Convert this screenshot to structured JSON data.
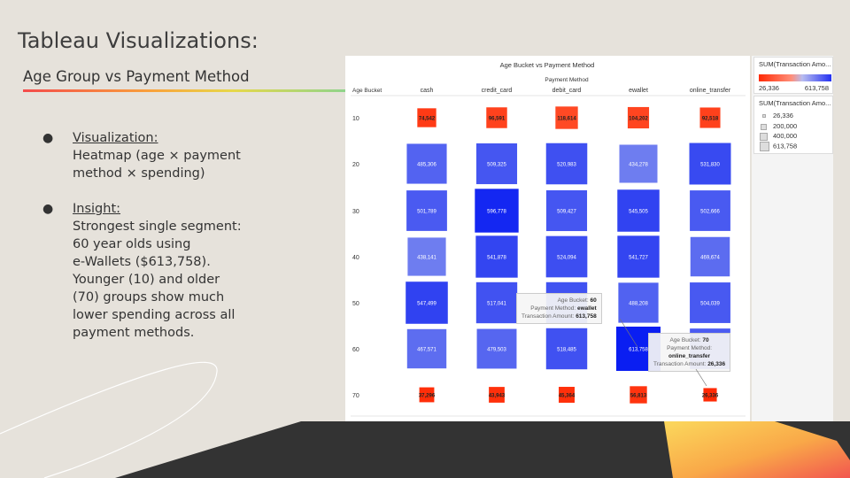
{
  "slide": {
    "title": "Tableau Visualizations:",
    "subtitle": "Age Group vs Payment Method",
    "bullets": [
      {
        "head": "Visualization:",
        "body": "Heatmap (age × payment\nmethod × spending)"
      },
      {
        "head": "Insight:",
        "body": "Strongest single segment:\n60 year olds using\ne-Wallets ($613,758).\nYounger (10) and older\n(70) groups show much\nlower spending across all\npayment methods."
      }
    ],
    "bullet_glyph": "●"
  },
  "colors": {
    "low": "#ff2a05",
    "high": "#0a1ef2",
    "mid_blue": "#5b6ef0"
  },
  "chart_data": {
    "type": "heatmap",
    "title": "Age Bucket vs Payment Method",
    "column_header": "Payment Method",
    "row_header": "Age Bucket",
    "columns": [
      "cash",
      "credit_card",
      "debit_card",
      "ewallet",
      "online_transfer"
    ],
    "rows": [
      "10",
      "20",
      "30",
      "40",
      "50",
      "60",
      "70"
    ],
    "values": [
      [
        74542,
        96591,
        118614,
        104202,
        92518
      ],
      [
        485306,
        509325,
        520983,
        434278,
        531830
      ],
      [
        501789,
        596778,
        509427,
        545505,
        502666
      ],
      [
        438141,
        541878,
        524094,
        541727,
        469674
      ],
      [
        547499,
        517041,
        518000,
        488208,
        504039
      ],
      [
        467571,
        479503,
        518485,
        613758,
        500000
      ],
      [
        37296,
        43943,
        45364,
        56813,
        26336
      ]
    ],
    "labels": [
      [
        "74,542",
        "96,591",
        "118,614",
        "104,202",
        "92,518"
      ],
      [
        "485,306",
        "509,325",
        "520,983",
        "434,278",
        "531,830"
      ],
      [
        "501,789",
        "596,778",
        "509,427",
        "545,505",
        "502,666"
      ],
      [
        "438,141",
        "541,878",
        "524,094",
        "541,727",
        "469,674"
      ],
      [
        "547,499",
        "517,041",
        "",
        "488,208",
        "504,039"
      ],
      [
        "467,571",
        "479,503",
        "518,485",
        "613,758",
        ""
      ],
      [
        "37,296",
        "43,943",
        "45,364",
        "56,813",
        "26,336"
      ]
    ],
    "color_legend": {
      "title": "SUM(Transaction Amo...",
      "min_label": "26,336",
      "max_label": "613,758"
    },
    "size_legend": {
      "title": "SUM(Transaction Amo...",
      "items": [
        "26,336",
        "200,000",
        "400,000",
        "613,758"
      ]
    },
    "tooltips": [
      {
        "age_label": "Age Bucket:",
        "age": "60",
        "method_label": "Payment Method:",
        "method": "ewallet",
        "amount_label": "Transaction Amount:",
        "amount": "613,758"
      },
      {
        "age_label": "Age Bucket:",
        "age": "70",
        "method_label": "Payment Method:",
        "method": "online_transfer",
        "amount_label": "Transaction Amount:",
        "amount": "26,336"
      }
    ]
  }
}
